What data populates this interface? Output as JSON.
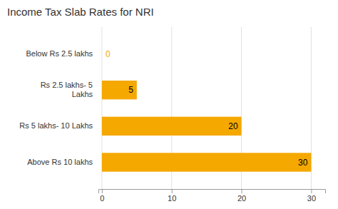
{
  "chart_data": {
    "type": "bar",
    "orientation": "horizontal",
    "title": "Income Tax Slab Rates for NRI",
    "categories": [
      "Above Rs 10 lakhs",
      "Rs 5 lakhs- 10 Lakhs",
      "Rs 2.5 lakhs- 5\nLakhs",
      "Below Rs 2.5 lakhs"
    ],
    "values": [
      30,
      20,
      5,
      0
    ],
    "color": "#F5A800",
    "xlim": [
      -0.5,
      32
    ],
    "xticks": [
      0,
      10,
      20,
      30
    ],
    "grid": true,
    "data_labels": true
  }
}
